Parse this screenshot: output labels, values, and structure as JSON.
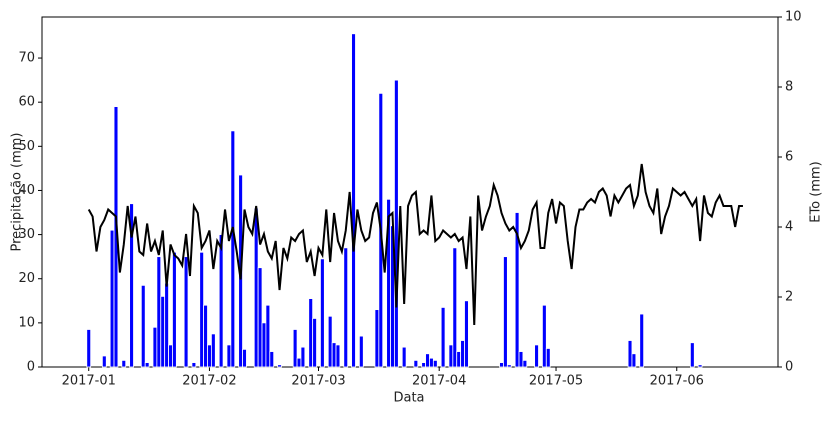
{
  "chart_data": {
    "type": "bar",
    "xlabel": "Data",
    "ylabel": "Precipitação (mm)",
    "y2label": "ETo (mm)",
    "x": [
      0,
      1,
      2,
      3,
      4,
      5,
      6,
      7,
      8,
      9,
      10,
      11,
      12,
      13,
      14,
      15,
      16,
      17,
      18,
      19,
      20,
      21,
      22,
      23,
      24,
      25,
      26,
      27,
      28,
      29,
      30,
      31,
      32,
      33,
      34,
      35,
      36,
      37,
      38,
      39,
      40,
      41,
      42,
      43,
      44,
      45,
      46,
      47,
      48,
      49,
      50,
      51,
      52,
      53,
      54,
      55,
      56,
      57,
      58,
      59,
      60,
      61,
      62,
      63,
      64,
      65,
      66,
      67,
      68,
      69,
      70,
      71,
      72,
      73,
      74,
      75,
      76,
      77,
      78,
      79,
      80,
      81,
      82,
      83,
      84,
      85,
      86,
      87,
      88,
      89,
      90,
      91,
      92,
      93,
      94,
      95,
      96,
      97,
      98,
      99,
      100,
      101,
      102,
      103,
      104,
      105,
      106,
      107,
      108,
      109,
      110,
      111,
      112,
      113,
      114,
      115,
      116,
      117,
      118,
      119,
      120,
      121,
      122,
      123,
      124,
      125,
      126,
      127,
      128,
      129,
      130,
      131,
      132,
      133,
      134,
      135,
      136,
      137,
      138,
      139,
      140,
      141,
      142,
      143,
      144,
      145,
      146,
      147,
      148,
      149,
      150,
      151,
      152,
      153,
      154,
      155,
      156,
      157,
      158,
      159,
      160,
      161,
      162,
      163,
      164,
      165,
      166,
      167,
      168
    ],
    "series": [
      {
        "type": "bar",
        "color": "#0000ff",
        "values": [
          8.5,
          0,
          0,
          0,
          2.5,
          0,
          31,
          59,
          0,
          1.5,
          0,
          37,
          0,
          0,
          18.5,
          1,
          0,
          9,
          25,
          16,
          19,
          5,
          26,
          0,
          0,
          25,
          0,
          1,
          0,
          26,
          14,
          5,
          7.5,
          0,
          30,
          0,
          5,
          53.5,
          0,
          43.5,
          4,
          0,
          0,
          36,
          22.5,
          10,
          14,
          3.5,
          0,
          0.5,
          0,
          0,
          0,
          8.5,
          2,
          4.5,
          0,
          15.5,
          11,
          0,
          24.5,
          0,
          11.5,
          5.5,
          5,
          0,
          27,
          0,
          75.5,
          0,
          7,
          0,
          0,
          0,
          13,
          62,
          0,
          38,
          32,
          65,
          0,
          4.5,
          0,
          0,
          1.5,
          0,
          1,
          3,
          2,
          1.5,
          0,
          13.5,
          0,
          5,
          27,
          3.5,
          6,
          15,
          0,
          0,
          0,
          0,
          0,
          0,
          0,
          0,
          1,
          25,
          0.5,
          0,
          35,
          3.5,
          1.5,
          0,
          0,
          5,
          0,
          14,
          4.2,
          0,
          0,
          0,
          0,
          0,
          0,
          0,
          0,
          0,
          0,
          0,
          0,
          0,
          0,
          0,
          0,
          0,
          0,
          0,
          0,
          6,
          3,
          0,
          12,
          0,
          0,
          0,
          0,
          0,
          0,
          0,
          0,
          0,
          0,
          0,
          0,
          5.5,
          0,
          0.5,
          0,
          0,
          0,
          0,
          0,
          0,
          0,
          0,
          0,
          0,
          0
        ]
      },
      {
        "type": "line",
        "axis": "y2",
        "color": "#000000",
        "values": [
          4.5,
          4.3,
          3.3,
          4.0,
          4.2,
          4.5,
          4.4,
          4.3,
          2.7,
          3.5,
          4.6,
          3.7,
          4.3,
          3.3,
          3.2,
          4.1,
          3.3,
          3.6,
          3.2,
          3.9,
          2.3,
          3.5,
          3.2,
          3.1,
          2.9,
          3.8,
          2.6,
          4.6,
          4.4,
          3.4,
          3.6,
          3.9,
          2.8,
          3.6,
          3.4,
          4.5,
          3.6,
          4.0,
          3.3,
          2.5,
          4.5,
          4.0,
          3.8,
          4.6,
          3.5,
          3.8,
          3.3,
          3.1,
          3.6,
          2.2,
          3.4,
          3.1,
          3.7,
          3.6,
          3.8,
          3.9,
          3.0,
          3.3,
          2.6,
          3.4,
          3.2,
          4.5,
          3.0,
          4.4,
          3.6,
          3.3,
          3.9,
          5.0,
          3.3,
          4.5,
          3.9,
          3.6,
          3.7,
          4.4,
          4.7,
          3.9,
          2.7,
          4.3,
          4.4,
          1.7,
          4.6,
          1.8,
          4.6,
          4.9,
          5.0,
          3.8,
          3.9,
          3.8,
          4.9,
          3.6,
          3.7,
          3.9,
          3.8,
          3.7,
          3.8,
          3.6,
          3.7,
          2.8,
          4.3,
          1.2,
          4.9,
          3.9,
          4.3,
          4.6,
          5.2,
          4.9,
          4.4,
          4.1,
          3.9,
          4.0,
          3.8,
          3.4,
          3.6,
          3.9,
          4.5,
          4.7,
          3.4,
          3.4,
          4.4,
          4.8,
          4.1,
          4.7,
          4.6,
          3.6,
          2.8,
          4.0,
          4.5,
          4.5,
          4.7,
          4.8,
          4.7,
          5.0,
          5.1,
          4.9,
          4.3,
          4.9,
          4.7,
          4.9,
          5.1,
          5.2,
          4.6,
          4.9,
          5.8,
          5.0,
          4.6,
          4.4,
          5.1,
          3.8,
          4.3,
          4.6,
          5.1,
          5.0,
          4.9,
          5.0,
          4.8,
          4.6,
          4.8,
          3.6,
          4.9,
          4.4,
          4.3,
          4.7,
          4.9,
          4.6,
          4.6,
          4.6,
          4.0,
          4.6,
          4.6
        ]
      }
    ],
    "xlim": [
      -12,
      177
    ],
    "xticks": [
      {
        "value": 0,
        "label": "2017-01"
      },
      {
        "value": 31,
        "label": "2017-02"
      },
      {
        "value": 59,
        "label": "2017-03"
      },
      {
        "value": 90,
        "label": "2017-04"
      },
      {
        "value": 120,
        "label": "2017-05"
      },
      {
        "value": 151,
        "label": "2017-06"
      }
    ],
    "ylim": [
      0,
      79.3
    ],
    "yticks": [
      0,
      10,
      20,
      30,
      40,
      50,
      60,
      70
    ],
    "y2lim": [
      0,
      10
    ],
    "y2ticks": [
      0,
      2,
      4,
      6,
      8,
      10
    ],
    "grid": false
  }
}
